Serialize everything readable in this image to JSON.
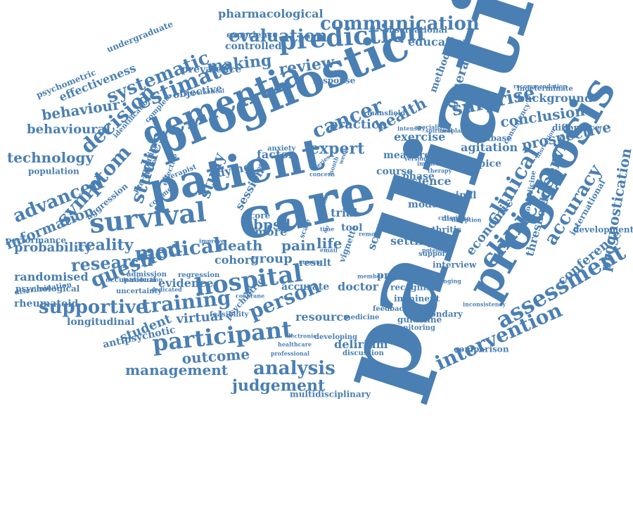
{
  "colors": {
    "text": "#4a7fb3",
    "background": "#ffffff"
  },
  "words": [
    "palliative",
    "care",
    "patient",
    "prognostic",
    "dementia",
    "prognosis",
    "hospital",
    "participant",
    "survival",
    "clinician",
    "assessment",
    "clinical",
    "intervention",
    "medical",
    "person",
    "prediction",
    "estimate",
    "communication",
    "evaluation",
    "systematic",
    "decision",
    "training",
    "supportive",
    "question",
    "symptom",
    "studies",
    "cancer",
    "analysis",
    "judgement",
    "outcome",
    "management",
    "research",
    "advanced",
    "surprise",
    "accuracy",
    "service",
    "making",
    "review",
    "prognostication",
    "behaviour",
    "behavioural",
    "information",
    "technology",
    "conclusion",
    "prospective",
    "pharmacological",
    "reality",
    "probability",
    "randomised",
    "virtual",
    "student",
    "longitudinal",
    "death",
    "pain",
    "life",
    "health",
    "expert",
    "practice",
    "education",
    "background",
    "general",
    "method",
    "conference",
    "economic",
    "delirium",
    "doctor",
    "agitation",
    "exercise",
    "study",
    "bpsd",
    "cohort",
    "group",
    "result",
    "evidence",
    "trial",
    "setting",
    "science",
    "terminal",
    "resource",
    "rheumatoid",
    "population",
    "psychological",
    "uncertainty",
    "multidisciplinary",
    "threshold",
    "international",
    "development",
    "antipsychotic",
    "psychiatric",
    "controlled",
    "experience",
    "observational",
    "prevalence",
    "objective",
    "effectiveness",
    "undergraduate",
    "psychometric",
    "performance",
    "aggression",
    "quality",
    "feasibility",
    "recognise",
    "imminent",
    "secondary",
    "guideline",
    "comparison",
    "primary",
    "accurate",
    "monitoring",
    "discussion",
    "developing",
    "factor",
    "dying",
    "session",
    "more",
    "core",
    "tool",
    "measure",
    "course",
    "design",
    "phase",
    "model",
    "data",
    "arthritis",
    "disease",
    "database",
    "hospice",
    "support",
    "interview",
    "consistency",
    "difference",
    "indeterminate",
    "mansfield",
    "feedback",
    "medicine",
    "professional",
    "electronic",
    "healthcare",
    "admission",
    "occupational",
    "introduction",
    "discrimination",
    "response",
    "specialist",
    "intensity",
    "neoplasm",
    "regression",
    "cochrane",
    "dedicated",
    "improve",
    "complete",
    "identification",
    "hypothetical",
    "potential",
    "scale",
    "time",
    "day",
    "vignette",
    "score",
    "meta",
    "current",
    "member",
    "challenging",
    "inconsistency",
    "criterion",
    "inception",
    "disruption",
    "biomedicine",
    "recommendation",
    "therapist",
    "common",
    "literature",
    "effective",
    "remote",
    "anxiety",
    "series",
    "spiritual",
    "email",
    "week",
    "month",
    "routine",
    "concern",
    "version",
    "impact",
    "therapy"
  ]
}
